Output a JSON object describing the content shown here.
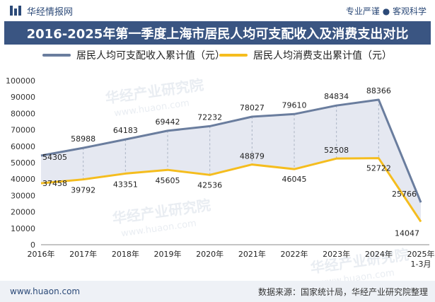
{
  "header": {
    "brand": "华经情报网",
    "slogan": "专业严谨 ● 客观科学"
  },
  "watermark": "华经产业研究院",
  "watermark_url": "www.huaon.com",
  "footer": {
    "url": "www.huaon.com",
    "source": "数据来源：国家统计局，华经产业研究院整理"
  },
  "colors": {
    "income": "#6a7d9e",
    "consumption": "#f5bd1e",
    "title_bg": "#3a5582",
    "fill": "#e2e6f0"
  },
  "chart_data": {
    "type": "line",
    "title": "2016-2025年第一季度上海市居民人均可支配收入及消费支出对比",
    "categories": [
      "2016年",
      "2017年",
      "2018年",
      "2019年",
      "2020年",
      "2021年",
      "2022年",
      "2023年",
      "2024年",
      "2025年1-3月"
    ],
    "category_lines": [
      [
        "2016年"
      ],
      [
        "2017年"
      ],
      [
        "2018年"
      ],
      [
        "2019年"
      ],
      [
        "2020年"
      ],
      [
        "2021年"
      ],
      [
        "2022年"
      ],
      [
        "2023年"
      ],
      [
        "2024年"
      ],
      [
        "2025年",
        "1-3月"
      ]
    ],
    "series": [
      {
        "name": "居民人均可支配收入累计值（元）",
        "values": [
          54305,
          58988,
          64183,
          69442,
          72232,
          78027,
          79610,
          84834,
          88366,
          25766
        ]
      },
      {
        "name": "居民人均消费支出累计值（元）",
        "values": [
          37458,
          39792,
          43351,
          45605,
          42536,
          48879,
          46045,
          52508,
          52722,
          14047
        ]
      }
    ],
    "yticks": [
      "0",
      "10000",
      "20000",
      "30000",
      "40000",
      "50000",
      "60000",
      "70000",
      "80000",
      "90000",
      "100000"
    ],
    "ylim": [
      0,
      100000
    ],
    "xlabel": "",
    "ylabel": "",
    "legend_position": "top"
  }
}
